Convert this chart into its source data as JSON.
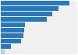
{
  "values": [
    17.15,
    14.35,
    12.87,
    11.48,
    6.02,
    5.74,
    5.66,
    4.97,
    2.48,
    0.97
  ],
  "bar_color": "#2878c0",
  "last_bar_color": "#b0cfe8",
  "background_color": "#ffffff",
  "plot_bg_color": "#f0f0f0",
  "xlim": [
    0,
    19
  ],
  "figsize": [
    1.0,
    0.71
  ],
  "dpi": 100,
  "bar_height": 0.82,
  "grid_color": "#ffffff",
  "grid_linewidth": 1.0
}
